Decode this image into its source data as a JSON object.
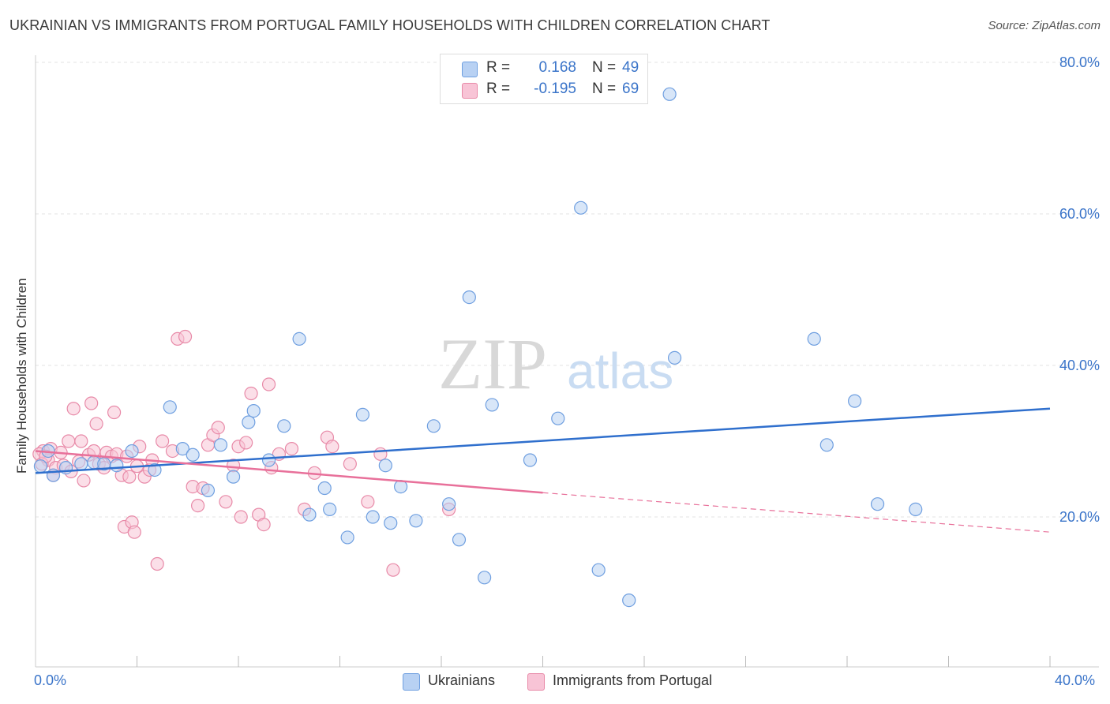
{
  "header": {
    "title": "UKRAINIAN VS IMMIGRANTS FROM PORTUGAL FAMILY HOUSEHOLDS WITH CHILDREN CORRELATION CHART",
    "source": "Source: ZipAtlas.com"
  },
  "legend": {
    "r_label": "R =",
    "n_label": "N =",
    "series": [
      {
        "name": "Ukrainians",
        "r": "0.168",
        "n": "49",
        "fill": "#b8d1f3",
        "stroke": "#6f9fe0"
      },
      {
        "name": "Immigrants from Portugal",
        "r": "-0.195",
        "n": "69",
        "fill": "#f8c4d6",
        "stroke": "#e88aa8"
      }
    ]
  },
  "watermark": {
    "zip": "ZIP",
    "atlas": "atlas"
  },
  "colors": {
    "accent_blue": "#3a74c9",
    "blue_line": "#2f6fcd",
    "pink_line": "#e8709a",
    "grid": "#e3e3e3"
  },
  "chart_data": {
    "type": "scatter",
    "title": "UKRAINIAN VS IMMIGRANTS FROM PORTUGAL FAMILY HOUSEHOLDS WITH CHILDREN CORRELATION CHART",
    "xlabel": "",
    "ylabel": "Family Households with Children",
    "xlim": [
      0,
      40
    ],
    "ylim": [
      0,
      85
    ],
    "x_tick_labels": [
      "0.0%",
      "40.0%"
    ],
    "y_ticks": [
      20,
      40,
      60,
      80
    ],
    "y_tick_labels": [
      "20.0%",
      "40.0%",
      "60.0%",
      "80.0%"
    ],
    "grid": true,
    "legend_position": "top-center",
    "series": [
      {
        "name": "Ukrainians",
        "points": [
          [
            0.5,
            28.7
          ],
          [
            0.7,
            25.5
          ],
          [
            1.2,
            26.5
          ],
          [
            1.8,
            27.0
          ],
          [
            2.3,
            27.2
          ],
          [
            2.7,
            27.0
          ],
          [
            3.2,
            26.8
          ],
          [
            3.8,
            28.7
          ],
          [
            4.7,
            26.2
          ],
          [
            5.3,
            34.5
          ],
          [
            5.8,
            29.0
          ],
          [
            6.2,
            28.2
          ],
          [
            6.8,
            23.5
          ],
          [
            7.3,
            29.5
          ],
          [
            7.8,
            25.3
          ],
          [
            8.4,
            32.5
          ],
          [
            8.6,
            34.0
          ],
          [
            9.2,
            27.5
          ],
          [
            9.8,
            32.0
          ],
          [
            10.4,
            43.5
          ],
          [
            10.8,
            20.3
          ],
          [
            11.4,
            23.8
          ],
          [
            11.6,
            21.0
          ],
          [
            12.3,
            17.3
          ],
          [
            12.9,
            33.5
          ],
          [
            13.3,
            20.0
          ],
          [
            13.8,
            26.8
          ],
          [
            14.0,
            19.2
          ],
          [
            14.4,
            24.0
          ],
          [
            15.0,
            19.5
          ],
          [
            15.7,
            32.0
          ],
          [
            16.3,
            21.7
          ],
          [
            16.7,
            17.0
          ],
          [
            17.1,
            49.0
          ],
          [
            17.7,
            12.0
          ],
          [
            18.0,
            34.8
          ],
          [
            19.5,
            27.5
          ],
          [
            20.6,
            33.0
          ],
          [
            21.5,
            60.8
          ],
          [
            22.2,
            13.0
          ],
          [
            23.4,
            9.0
          ],
          [
            25.0,
            75.8
          ],
          [
            25.2,
            41.0
          ],
          [
            30.7,
            43.5
          ],
          [
            31.2,
            29.5
          ],
          [
            32.3,
            35.3
          ],
          [
            33.2,
            21.7
          ],
          [
            34.7,
            21.0
          ],
          [
            0.2,
            26.7
          ]
        ]
      },
      {
        "name": "Immigrants from Portugal",
        "points": [
          [
            0.3,
            28.7
          ],
          [
            0.5,
            27.5
          ],
          [
            0.6,
            29.0
          ],
          [
            0.8,
            26.5
          ],
          [
            1.0,
            28.5
          ],
          [
            1.1,
            26.8
          ],
          [
            1.3,
            30.0
          ],
          [
            1.4,
            26.0
          ],
          [
            1.5,
            34.3
          ],
          [
            1.7,
            27.3
          ],
          [
            1.8,
            30.0
          ],
          [
            1.9,
            24.8
          ],
          [
            2.1,
            28.2
          ],
          [
            2.2,
            35.0
          ],
          [
            2.3,
            28.7
          ],
          [
            2.4,
            32.3
          ],
          [
            2.5,
            27.0
          ],
          [
            2.7,
            26.5
          ],
          [
            2.8,
            28.5
          ],
          [
            3.0,
            28.0
          ],
          [
            3.1,
            33.8
          ],
          [
            3.2,
            28.3
          ],
          [
            3.4,
            25.5
          ],
          [
            3.5,
            18.7
          ],
          [
            3.6,
            28.0
          ],
          [
            3.7,
            25.3
          ],
          [
            3.8,
            19.3
          ],
          [
            3.9,
            18.0
          ],
          [
            4.0,
            26.7
          ],
          [
            4.1,
            29.3
          ],
          [
            4.3,
            25.3
          ],
          [
            4.5,
            26.2
          ],
          [
            4.6,
            27.5
          ],
          [
            4.8,
            13.8
          ],
          [
            5.0,
            30.0
          ],
          [
            5.4,
            28.7
          ],
          [
            5.6,
            43.5
          ],
          [
            5.9,
            43.8
          ],
          [
            6.2,
            24.0
          ],
          [
            6.4,
            21.5
          ],
          [
            6.6,
            23.8
          ],
          [
            6.8,
            29.5
          ],
          [
            7.0,
            30.8
          ],
          [
            7.2,
            31.8
          ],
          [
            7.5,
            22.0
          ],
          [
            7.8,
            26.8
          ],
          [
            8.0,
            29.3
          ],
          [
            8.1,
            20.0
          ],
          [
            8.3,
            29.8
          ],
          [
            8.5,
            36.3
          ],
          [
            8.8,
            20.3
          ],
          [
            9.0,
            19.0
          ],
          [
            9.2,
            37.5
          ],
          [
            9.3,
            26.5
          ],
          [
            9.6,
            28.3
          ],
          [
            10.1,
            29.0
          ],
          [
            10.6,
            21.0
          ],
          [
            11.0,
            25.8
          ],
          [
            11.5,
            30.5
          ],
          [
            11.7,
            29.3
          ],
          [
            12.4,
            27.0
          ],
          [
            13.1,
            22.0
          ],
          [
            13.6,
            28.3
          ],
          [
            14.1,
            13.0
          ],
          [
            16.3,
            21.0
          ],
          [
            0.15,
            28.3
          ],
          [
            0.25,
            27.0
          ],
          [
            0.4,
            28.0
          ],
          [
            0.7,
            25.5
          ]
        ]
      }
    ],
    "trend_lines": [
      {
        "series": "Ukrainians",
        "x": [
          0,
          40
        ],
        "y": [
          25.8,
          34.3
        ],
        "style": "solid"
      },
      {
        "series": "Immigrants from Portugal",
        "x": [
          0,
          20
        ],
        "y": [
          28.7,
          23.2
        ],
        "style": "solid"
      },
      {
        "series": "Immigrants from Portugal",
        "x": [
          20,
          40
        ],
        "y": [
          23.2,
          18.0
        ],
        "style": "dashed"
      }
    ]
  }
}
